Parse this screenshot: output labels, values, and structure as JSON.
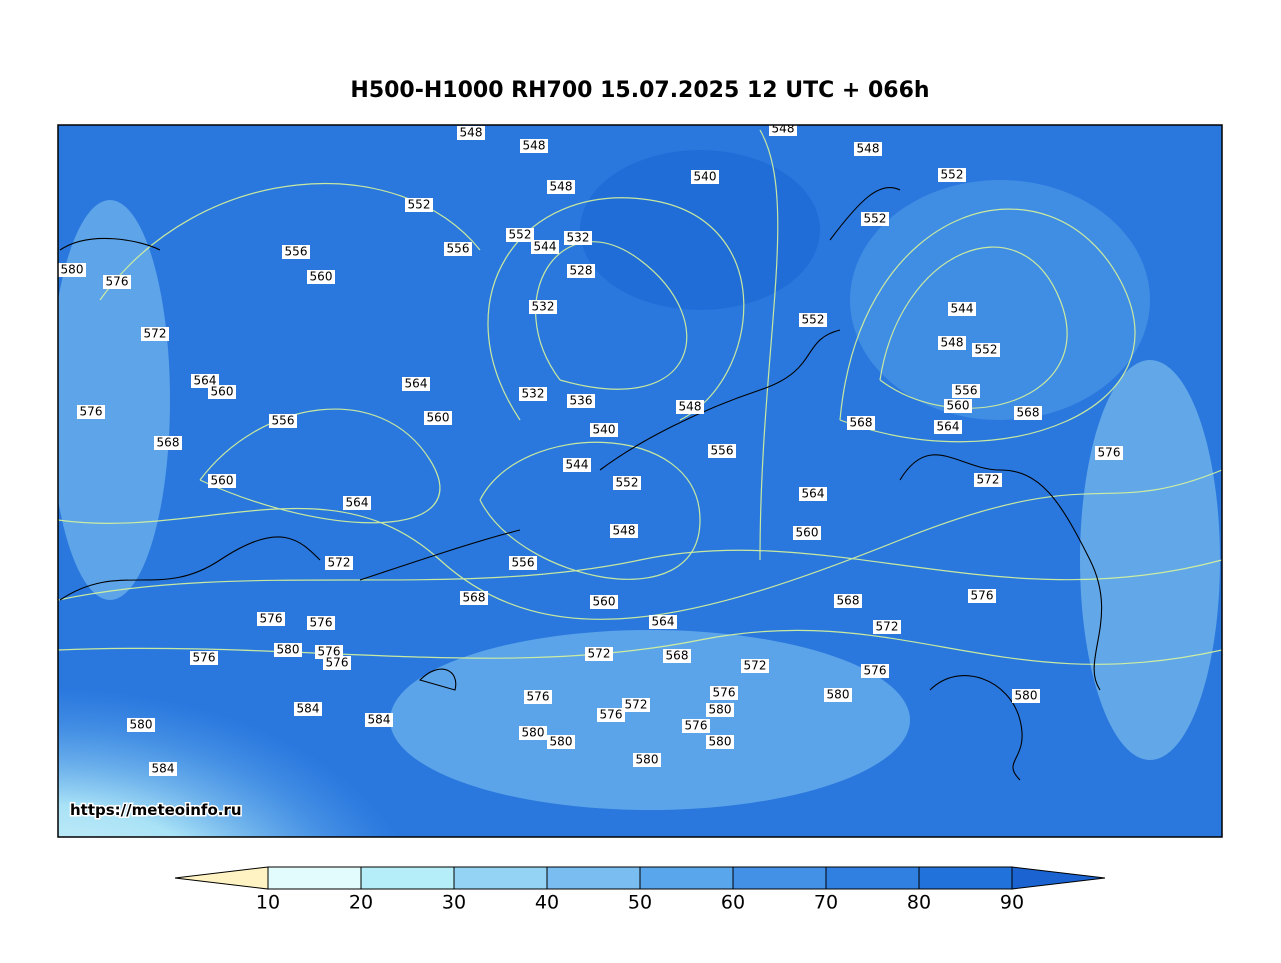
{
  "title": "H500-H1000 RH700 15.07.2025 12 UTC + 066h",
  "watermark": "https://meteoinfo.ru",
  "contour_labels": [
    548,
    548,
    548,
    548,
    540,
    552,
    548,
    552,
    552,
    556,
    556,
    552,
    544,
    532,
    580,
    576,
    560,
    528,
    532,
    552,
    544,
    572,
    548,
    552,
    564,
    560,
    564,
    532,
    536,
    556,
    576,
    556,
    560,
    540,
    548,
    560,
    568,
    568,
    568,
    564,
    556,
    544,
    576,
    560,
    552,
    572,
    564,
    564,
    548,
    560,
    572,
    556,
    568,
    560,
    568,
    576,
    576,
    576,
    564,
    572,
    580,
    576,
    576,
    576,
    572,
    568,
    572,
    576,
    576,
    576,
    580,
    580,
    584,
    572,
    580,
    576,
    584,
    580,
    576,
    580,
    580,
    580,
    580,
    584
  ],
  "colorbar": {
    "ticks": [
      10,
      20,
      30,
      40,
      50,
      60,
      70,
      80,
      90
    ],
    "under_color": "#fff3c4",
    "colors": [
      "#e2fbfd",
      "#b5eef8",
      "#95d3f4",
      "#7abdf0",
      "#5aa6ec",
      "#4291e7",
      "#2f80e1",
      "#2272db"
    ],
    "over_color": "#1b63d0"
  }
}
